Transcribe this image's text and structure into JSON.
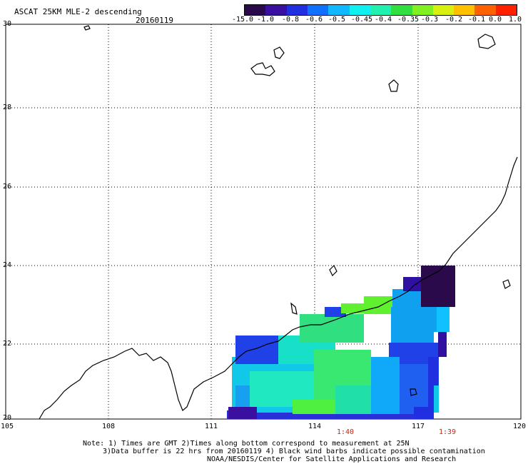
{
  "header": {
    "title": "ASCAT 25KM MLE-2 descending",
    "date": "20160119"
  },
  "colorbar": {
    "labels": [
      "-15.0",
      "-1.0",
      "-0.8",
      "-0.6",
      "-0.5",
      "-0.45",
      "-0.4",
      "-0.35",
      "-0.3",
      "-0.2",
      "-0.1",
      "0.0",
      "1.0"
    ],
    "colors": [
      "#2a0a4a",
      "#3a10a0",
      "#2030e0",
      "#1070ff",
      "#10b8ff",
      "#10f0f0",
      "#20f0b0",
      "#30e040",
      "#80f020",
      "#d8f010",
      "#ffc000",
      "#ff6000",
      "#ff2000"
    ]
  },
  "axes": {
    "lat_labels": [
      "30",
      "28",
      "26",
      "24",
      "22",
      "20"
    ],
    "lon_labels": [
      "105",
      "108",
      "111",
      "114",
      "117",
      "120"
    ],
    "lat_range": [
      20,
      30
    ],
    "lon_range": [
      105,
      120
    ]
  },
  "pass_times": [
    {
      "lon": 115,
      "time": "1:40"
    },
    {
      "lon": 118,
      "time": "1:39"
    }
  ],
  "notes": {
    "line1": "Note: 1) Times are GMT 2)Times along bottom correspond to measurement at 25N",
    "line2": "3)Data buffer is 22 hrs from 20160119 4) Black wind barbs indicate possible contamination",
    "line3": "NOAA/NESDIS/Center for Satellite Applications and Research"
  }
}
